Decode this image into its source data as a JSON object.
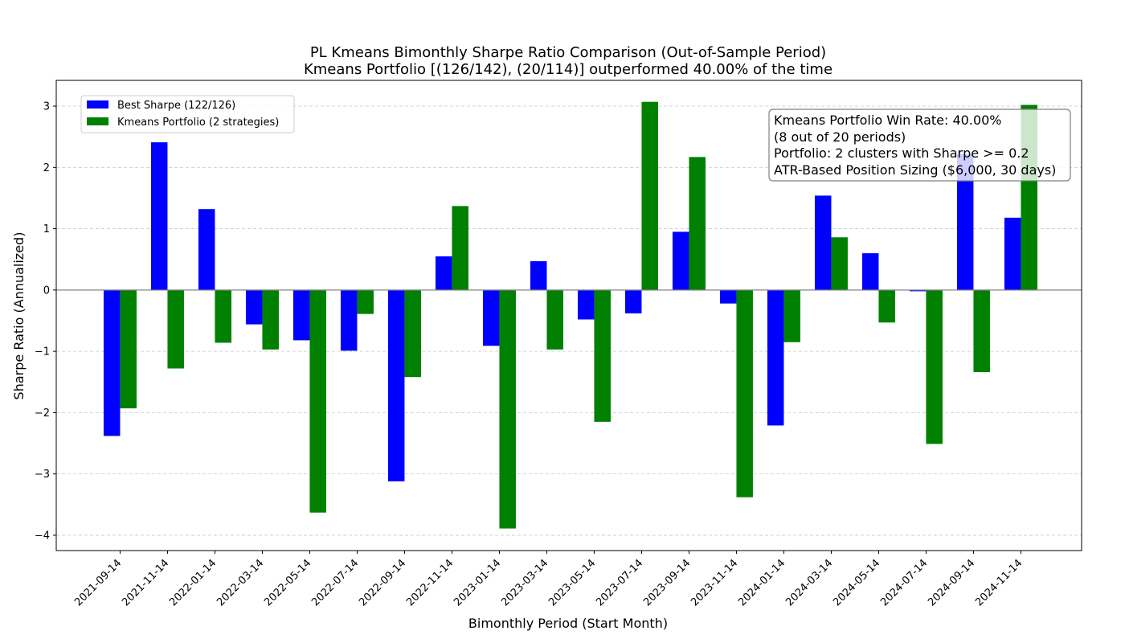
{
  "chart_data": {
    "type": "bar",
    "title": "PL Kmeans Bimonthly Sharpe Ratio Comparison (Out-of-Sample Period)",
    "subtitle": "Kmeans Portfolio [(126/142), (20/114)] outperformed 40.00% of the time",
    "xlabel": "Bimonthly Period (Start Month)",
    "ylabel": "Sharpe Ratio (Annualized)",
    "ylim": [
      -4.25,
      3.42
    ],
    "yticks": [
      3,
      2,
      1,
      0,
      -1,
      -2,
      -3,
      -4
    ],
    "ytick_labels": [
      "3",
      "2",
      "1",
      "0",
      "−1",
      "−2",
      "−3",
      "−4"
    ],
    "grid": "horizontal dashed",
    "legend_position": "top-left",
    "categories": [
      "2021-09-14",
      "2021-11-14",
      "2022-01-14",
      "2022-03-14",
      "2022-05-14",
      "2022-07-14",
      "2022-09-14",
      "2022-11-14",
      "2023-01-14",
      "2023-03-14",
      "2023-05-14",
      "2023-07-14",
      "2023-09-14",
      "2023-11-14",
      "2024-01-14",
      "2024-03-14",
      "2024-05-14",
      "2024-07-14",
      "2024-09-14",
      "2024-11-14"
    ],
    "series": [
      {
        "name": "Best Sharpe (122/126)",
        "color": "#0000ff",
        "values": [
          -2.38,
          2.41,
          1.32,
          -0.56,
          -0.82,
          -0.99,
          -3.12,
          0.55,
          -0.91,
          0.47,
          -0.48,
          -0.38,
          0.95,
          -0.22,
          -2.21,
          1.54,
          0.6,
          -0.02,
          2.22,
          1.18
        ]
      },
      {
        "name": "Kmeans Portfolio (2 strategies)",
        "color": "#008000",
        "values": [
          -1.93,
          -1.28,
          -0.86,
          -0.97,
          -3.63,
          -0.39,
          -1.42,
          1.37,
          -3.89,
          -0.97,
          -2.15,
          3.07,
          2.17,
          -3.38,
          -0.85,
          0.86,
          -0.53,
          -2.51,
          -1.34,
          3.02
        ]
      }
    ],
    "annotation": [
      "Kmeans Portfolio Win Rate: 40.00%",
      "(8 out of 20 periods)",
      "Portfolio: 2 clusters with Sharpe >= 0.2",
      "ATR-Based Position Sizing ($6,000, 30 days)"
    ]
  }
}
